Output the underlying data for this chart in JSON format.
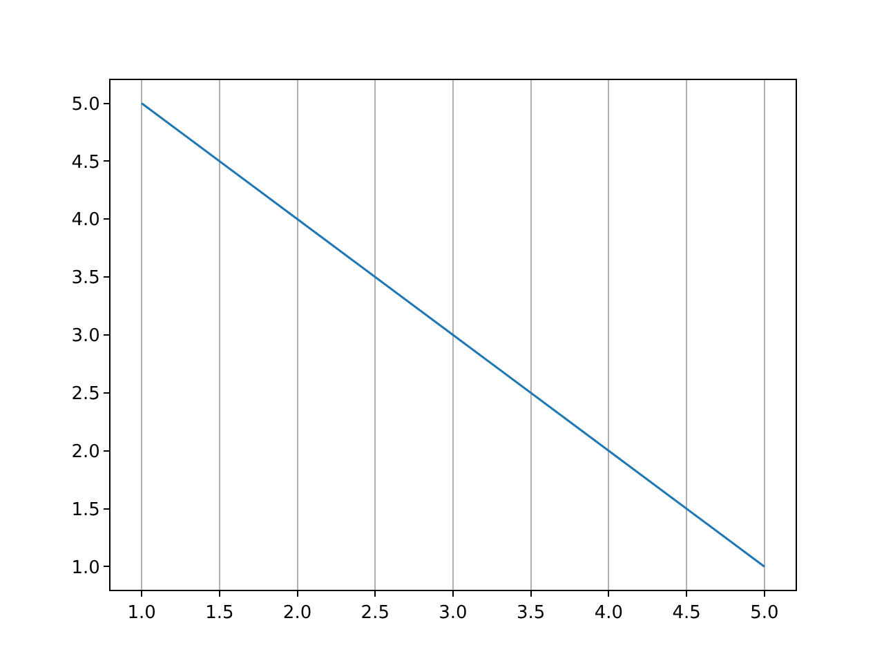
{
  "chart_data": {
    "type": "line",
    "x": [
      1,
      2,
      3,
      4,
      5
    ],
    "series": [
      {
        "color": "#1f77b4",
        "values": [
          5,
          4,
          3,
          2,
          1
        ]
      }
    ],
    "xlim": [
      0.8,
      5.2
    ],
    "ylim": [
      0.8,
      5.2
    ],
    "xticks": [
      {
        "value": 1,
        "label": "1.0"
      },
      {
        "value": 1.5,
        "label": "1.5"
      },
      {
        "value": 2,
        "label": "2.0"
      },
      {
        "value": 2.5,
        "label": "2.5"
      },
      {
        "value": 3,
        "label": "3.0"
      },
      {
        "value": 3.5,
        "label": "3.5"
      },
      {
        "value": 4,
        "label": "4.0"
      },
      {
        "value": 4.5,
        "label": "4.5"
      },
      {
        "value": 5,
        "label": "5.0"
      }
    ],
    "yticks": [
      {
        "value": 1,
        "label": "1.0"
      },
      {
        "value": 1.5,
        "label": "1.5"
      },
      {
        "value": 2,
        "label": "2.0"
      },
      {
        "value": 2.5,
        "label": "2.5"
      },
      {
        "value": 3,
        "label": "3.0"
      },
      {
        "value": 3.5,
        "label": "3.5"
      },
      {
        "value": 4,
        "label": "4.0"
      },
      {
        "value": 4.5,
        "label": "4.5"
      },
      {
        "value": 5,
        "label": "5.0"
      }
    ],
    "grid": "x",
    "marker": "none",
    "line_style": "solid"
  }
}
